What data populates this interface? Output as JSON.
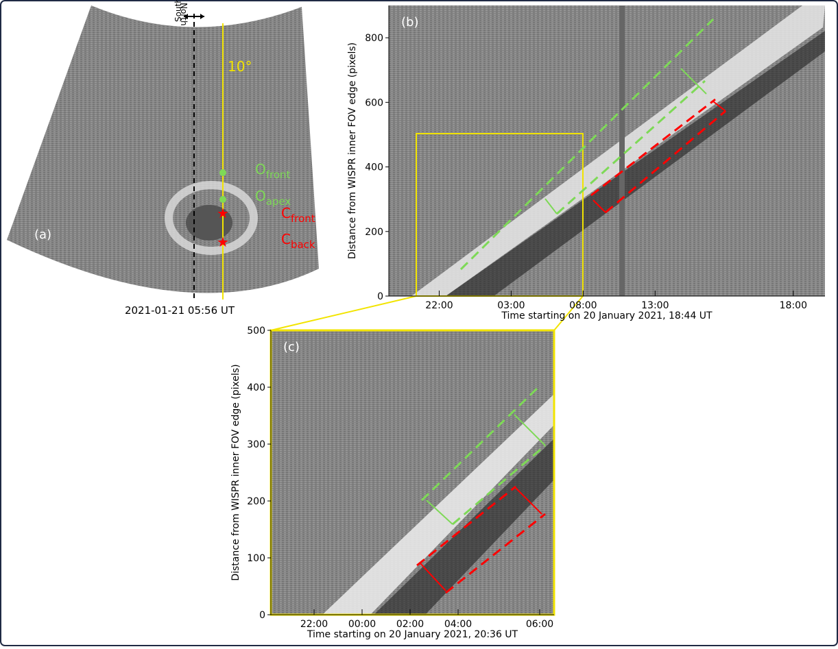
{
  "panel_a": {
    "label": "(a)",
    "south": "South",
    "north": "North",
    "angle": "10°",
    "markers": [
      {
        "name": "O",
        "sub": "front"
      },
      {
        "name": "O",
        "sub": "apex"
      },
      {
        "name": "C",
        "sub": "front"
      },
      {
        "name": "C",
        "sub": "back"
      }
    ],
    "timestamp": "2021-01-21  05:56 UT"
  },
  "chart_data": [
    {
      "type": "image",
      "label": "(b)",
      "xlabel": "Time starting on 20 January 2021, 18:44 UT",
      "ylabel": "Distance from WISPR inner FOV edge (pixels)",
      "xlim": [
        0,
        30.3
      ],
      "xticks": [
        {
          "value": 3.5,
          "label": "22:00"
        },
        {
          "value": 8.5,
          "label": "03:00"
        },
        {
          "value": 13.5,
          "label": "08:00"
        },
        {
          "value": 18.5,
          "label": "13:00"
        },
        {
          "value": 28.1,
          "label": "18:00"
        }
      ],
      "ylim": [
        0,
        900
      ],
      "yticks": [
        0,
        200,
        400,
        600,
        800
      ]
    },
    {
      "type": "image",
      "label": "(c)",
      "xlabel": "Time starting on 20 January 2021, 20:36 UT",
      "ylabel": "Distance from WISPR inner FOV edge (pixels)",
      "xlim": [
        0,
        11.8
      ],
      "xticks": [
        {
          "value": 1.8,
          "label": "22:00"
        },
        {
          "value": 3.8,
          "label": "00:00"
        },
        {
          "value": 5.8,
          "label": "02:00"
        },
        {
          "value": 7.8,
          "label": "04:00"
        },
        {
          "value": 11.2,
          "label": "06:00"
        }
      ],
      "ylim": [
        0,
        500
      ],
      "yticks": [
        0,
        100,
        200,
        300,
        400,
        500
      ]
    }
  ]
}
